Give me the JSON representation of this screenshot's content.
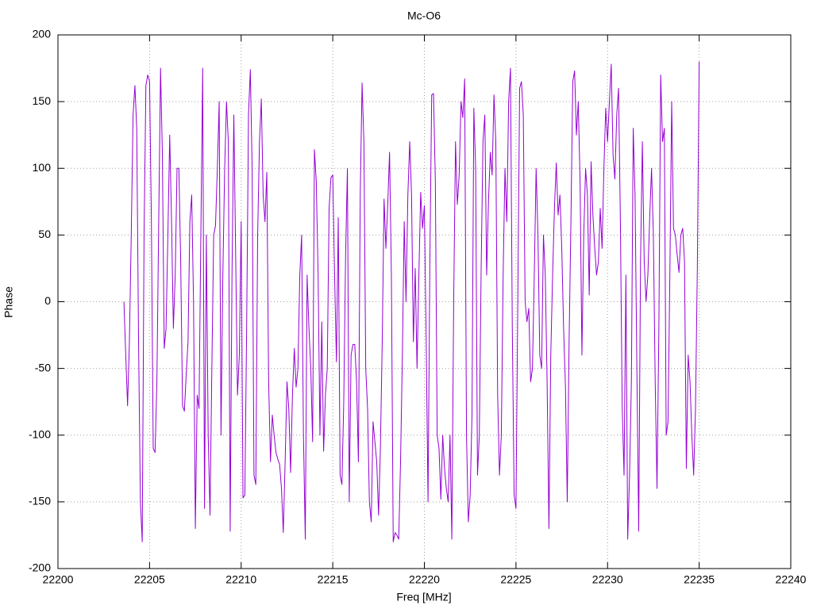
{
  "chart_data": {
    "type": "line",
    "title": "Mc-O6",
    "xlabel": "Freq [MHz]",
    "ylabel": "Phase",
    "color": "#9400d3",
    "grid": true,
    "xlim": [
      22200,
      22240
    ],
    "xticks": [
      22200,
      22205,
      22210,
      22215,
      22220,
      22225,
      22230,
      22235,
      22240
    ],
    "ylim": [
      -200,
      200
    ],
    "yticks": [
      -200,
      -150,
      -100,
      -50,
      0,
      50,
      100,
      150,
      200
    ],
    "x": [
      22203.6,
      22203.7,
      22203.8,
      22203.9,
      22204.0,
      22204.1,
      22204.2,
      22204.3,
      22204.4,
      22204.5,
      22204.6,
      22204.7,
      22204.8,
      22204.9,
      22205.0,
      22205.1,
      22205.2,
      22205.3,
      22205.4,
      22205.5,
      22205.6,
      22205.7,
      22205.8,
      22205.9,
      22206.0,
      22206.1,
      22206.2,
      22206.3,
      22206.4,
      22206.5,
      22206.6,
      22206.7,
      22206.8,
      22206.9,
      22207.0,
      22207.1,
      22207.2,
      22207.3,
      22207.4,
      22207.5,
      22207.6,
      22207.7,
      22207.8,
      22207.9,
      22208.0,
      22208.1,
      22208.2,
      22208.3,
      22208.4,
      22208.5,
      22208.6,
      22208.7,
      22208.8,
      22208.9,
      22209.0,
      22209.1,
      22209.2,
      22209.3,
      22209.4,
      22209.5,
      22209.6,
      22209.7,
      22209.8,
      22209.9,
      22210.0,
      22210.1,
      22210.2,
      22210.3,
      22210.4,
      22210.5,
      22210.6,
      22210.7,
      22210.8,
      22210.9,
      22211.0,
      22211.1,
      22211.2,
      22211.3,
      22211.4,
      22211.5,
      22211.6,
      22211.7,
      22211.8,
      22211.9,
      22212.0,
      22212.1,
      22212.2,
      22212.3,
      22212.4,
      22212.5,
      22212.6,
      22212.7,
      22212.8,
      22212.9,
      22213.0,
      22213.1,
      22213.2,
      22213.3,
      22213.4,
      22213.5,
      22213.6,
      22213.7,
      22213.8,
      22213.9,
      22214.0,
      22214.1,
      22214.2,
      22214.3,
      22214.4,
      22214.5,
      22214.6,
      22214.7,
      22214.8,
      22214.9,
      22215.0,
      22215.1,
      22215.2,
      22215.3,
      22215.4,
      22215.5,
      22215.6,
      22215.7,
      22215.8,
      22215.9,
      22216.0,
      22216.1,
      22216.2,
      22216.3,
      22216.4,
      22216.5,
      22216.6,
      22216.7,
      22216.8,
      22216.9,
      22217.0,
      22217.1,
      22217.2,
      22217.3,
      22217.4,
      22217.5,
      22217.6,
      22217.7,
      22217.8,
      22217.9,
      22218.0,
      22218.1,
      22218.2,
      22218.3,
      22218.4,
      22218.5,
      22218.6,
      22218.7,
      22218.8,
      22218.9,
      22219.0,
      22219.1,
      22219.2,
      22219.3,
      22219.4,
      22219.5,
      22219.6,
      22219.7,
      22219.8,
      22219.9,
      22220.0,
      22220.1,
      22220.2,
      22220.3,
      22220.4,
      22220.5,
      22220.6,
      22220.7,
      22220.8,
      22220.9,
      22221.0,
      22221.1,
      22221.2,
      22221.3,
      22221.4,
      22221.5,
      22221.6,
      22221.7,
      22221.8,
      22221.9,
      22222.0,
      22222.1,
      22222.2,
      22222.3,
      22222.4,
      22222.5,
      22222.6,
      22222.7,
      22222.8,
      22222.9,
      22223.0,
      22223.1,
      22223.2,
      22223.3,
      22223.4,
      22223.5,
      22223.6,
      22223.7,
      22223.8,
      22223.9,
      22224.0,
      22224.1,
      22224.2,
      22224.3,
      22224.4,
      22224.5,
      22224.6,
      22224.7,
      22224.8,
      22224.9,
      22225.0,
      22225.1,
      22225.2,
      22225.3,
      22225.4,
      22225.5,
      22225.6,
      22225.7,
      22225.8,
      22225.9,
      22226.0,
      22226.1,
      22226.2,
      22226.3,
      22226.4,
      22226.5,
      22226.6,
      22226.7,
      22226.8,
      22226.9,
      22227.0,
      22227.1,
      22227.2,
      22227.3,
      22227.4,
      22227.5,
      22227.6,
      22227.7,
      22227.8,
      22227.9,
      22228.0,
      22228.1,
      22228.2,
      22228.3,
      22228.4,
      22228.5,
      22228.6,
      22228.7,
      22228.8,
      22228.9,
      22229.0,
      22229.1,
      22229.2,
      22229.3,
      22229.4,
      22229.5,
      22229.6,
      22229.7,
      22229.8,
      22229.9,
      22230.0,
      22230.1,
      22230.2,
      22230.3,
      22230.4,
      22230.5,
      22230.6,
      22230.7,
      22230.8,
      22230.9,
      22231.0,
      22231.1,
      22231.2,
      22231.3,
      22231.4,
      22231.5,
      22231.6,
      22231.7,
      22231.8,
      22231.9,
      22232.0,
      22232.1,
      22232.2,
      22232.3,
      22232.4,
      22232.5,
      22232.6,
      22232.7,
      22232.8,
      22232.9,
      22233.0,
      22233.1,
      22233.2,
      22233.3,
      22233.4,
      22233.5,
      22233.6,
      22233.7,
      22233.8,
      22233.9,
      22234.0,
      22234.1,
      22234.2,
      22234.3,
      22234.4,
      22234.5,
      22234.6,
      22234.7,
      22234.8,
      22234.9,
      22235.0
    ],
    "values": [
      0,
      -40,
      -78,
      -30,
      50,
      140,
      162,
      130,
      -30,
      -150,
      -180,
      50,
      162,
      170,
      165,
      60,
      -110,
      -113,
      -60,
      60,
      175,
      110,
      -35,
      -20,
      50,
      125,
      60,
      -20,
      20,
      100,
      100,
      30,
      -78,
      -82,
      -55,
      -30,
      60,
      80,
      0,
      -170,
      -70,
      -80,
      50,
      175,
      -155,
      50,
      -100,
      -160,
      -50,
      50,
      57,
      100,
      150,
      -100,
      20,
      100,
      150,
      120,
      -172,
      20,
      140,
      35,
      -70,
      -40,
      60,
      -147,
      -145,
      -20,
      140,
      174,
      100,
      -130,
      -137,
      50,
      120,
      152,
      80,
      60,
      97,
      -60,
      -120,
      -85,
      -100,
      -113,
      -118,
      -122,
      -140,
      -173,
      -120,
      -60,
      -80,
      -128,
      -70,
      -35,
      -64,
      -50,
      20,
      50,
      -100,
      -178,
      20,
      -20,
      -50,
      -105,
      114,
      90,
      20,
      -100,
      -15,
      -112,
      -70,
      -50,
      70,
      93,
      95,
      20,
      -45,
      63,
      -130,
      -137,
      -75,
      35,
      100,
      -150,
      -40,
      -32,
      -32,
      -60,
      -120,
      80,
      164,
      120,
      -50,
      -80,
      -150,
      -165,
      -90,
      -105,
      -120,
      -160,
      -110,
      -30,
      77,
      40,
      72,
      112,
      20,
      -180,
      -173,
      -175,
      -178,
      -120,
      -40,
      60,
      0,
      80,
      120,
      80,
      -30,
      25,
      -50,
      20,
      82,
      55,
      72,
      -30,
      -150,
      30,
      155,
      156,
      90,
      -100,
      -110,
      -148,
      -100,
      -125,
      -140,
      -150,
      -100,
      -178,
      0,
      120,
      73,
      95,
      150,
      138,
      167,
      -100,
      -165,
      -145,
      -85,
      145,
      100,
      -130,
      -100,
      25,
      120,
      140,
      20,
      75,
      112,
      95,
      155,
      120,
      -70,
      -130,
      -100,
      20,
      100,
      60,
      150,
      175,
      -20,
      -145,
      -155,
      0,
      160,
      165,
      140,
      0,
      -15,
      -5,
      -60,
      -50,
      20,
      100,
      50,
      -40,
      -50,
      50,
      20,
      -60,
      -170,
      -40,
      20,
      70,
      104,
      65,
      80,
      40,
      -20,
      -63,
      -150,
      -30,
      60,
      165,
      173,
      125,
      150,
      90,
      -40,
      50,
      100,
      80,
      5,
      105,
      65,
      40,
      20,
      30,
      70,
      40,
      100,
      145,
      120,
      150,
      178,
      110,
      92,
      140,
      160,
      60,
      -80,
      -130,
      20,
      -178,
      -130,
      -60,
      130,
      80,
      -50,
      -172,
      30,
      120,
      30,
      0,
      20,
      63,
      100,
      50,
      -60,
      -140,
      -20,
      170,
      120,
      130,
      -100,
      -90,
      20,
      150,
      55,
      50,
      35,
      22,
      50,
      55,
      30,
      -125,
      -40,
      -60,
      -100,
      -130,
      -80,
      25,
      180
    ]
  }
}
